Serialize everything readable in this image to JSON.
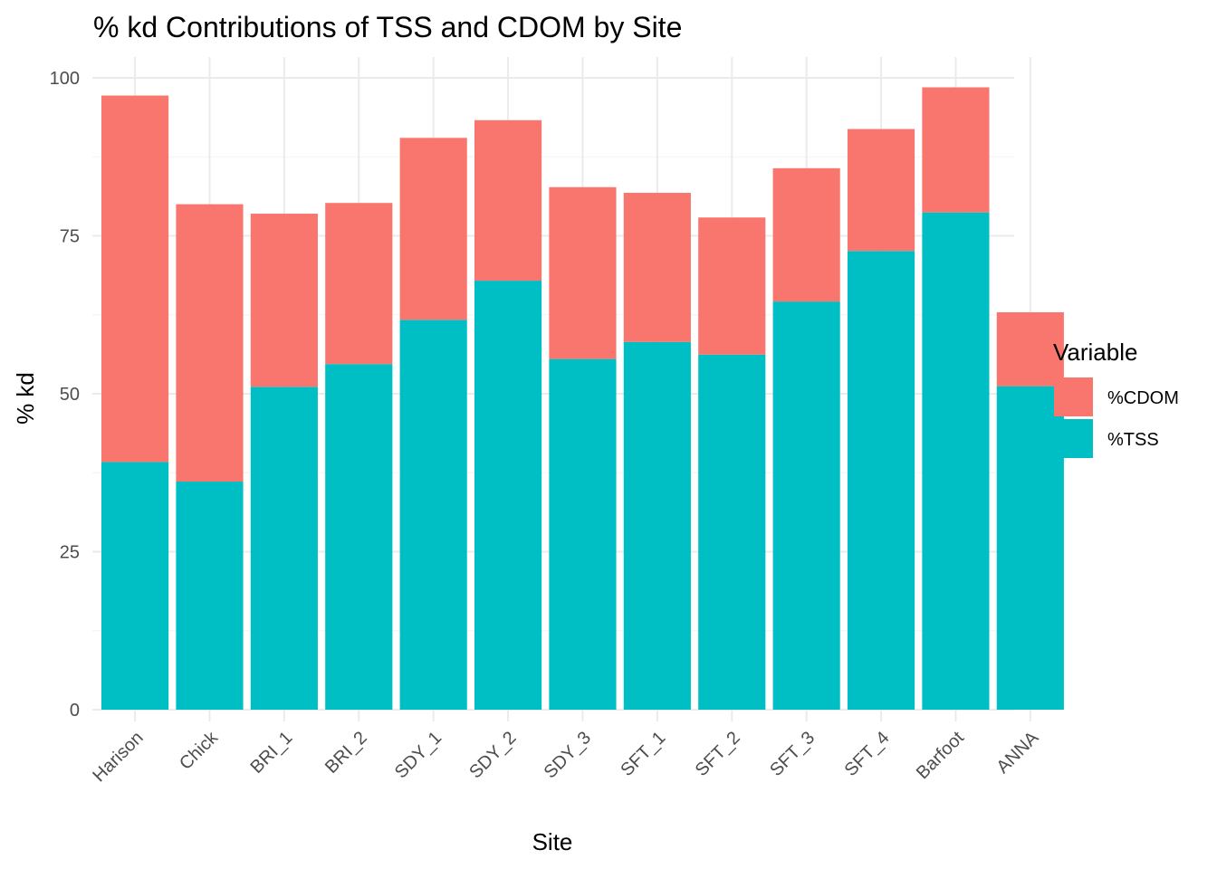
{
  "chart_data": {
    "type": "bar",
    "stacked": true,
    "title": "% kd Contributions of TSS and CDOM by Site",
    "xlabel": "Site",
    "ylabel": "% kd",
    "ylim": [
      0,
      100
    ],
    "yticks": [
      0,
      25,
      50,
      75,
      100
    ],
    "grid": true,
    "legend": {
      "title": "Variable",
      "position": "right"
    },
    "categories": [
      "Harison",
      "Chick",
      "BRI_1",
      "BRI_2",
      "SDY_1",
      "SDY_2",
      "SDY_3",
      "SFT_1",
      "SFT_2",
      "SFT_3",
      "SFT_4",
      "Barfoot",
      "ANNA"
    ],
    "series": [
      {
        "name": "%TSS",
        "color": "#00BFC4",
        "values": [
          39.2,
          36.1,
          51.1,
          54.7,
          61.7,
          67.9,
          55.5,
          58.2,
          56.2,
          64.6,
          72.6,
          78.7,
          51.2
        ]
      },
      {
        "name": "%CDOM",
        "color": "#F8766D",
        "values": [
          58.0,
          43.9,
          27.4,
          25.5,
          28.8,
          25.4,
          27.2,
          23.6,
          21.7,
          21.1,
          19.3,
          19.8,
          11.7
        ]
      }
    ]
  }
}
